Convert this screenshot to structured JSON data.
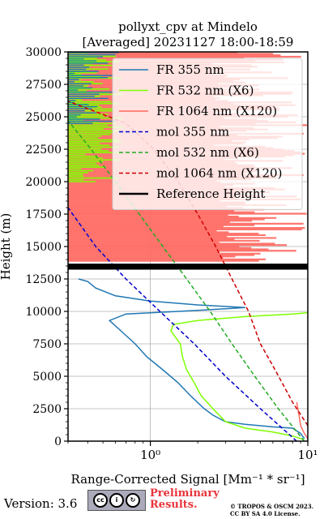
{
  "chart_data": {
    "type": "line",
    "title_line1": "pollyxt_cpv at Mindelo",
    "title_line2": "[Averaged] 20231127 18:00-18:59",
    "xlabel": "Range-Corrected Signal [Mm⁻¹ * sr⁻¹]",
    "ylabel": "Height (m)",
    "xscale": "log",
    "xlim": [
      0.3,
      10
    ],
    "ylim": [
      0,
      30000
    ],
    "xticks": [
      {
        "value": 1,
        "label": "10⁰"
      },
      {
        "value": 10,
        "label": "10¹"
      }
    ],
    "yticks": [
      0,
      2500,
      5000,
      7500,
      10000,
      12500,
      15000,
      17500,
      20000,
      22500,
      25000,
      27500,
      30000
    ],
    "grid": true,
    "legend_position": "top-right",
    "series": [
      {
        "name": "FR 355 nm",
        "color": "#1f77b4",
        "style": "solid",
        "points": [
          [
            9.5,
            200
          ],
          [
            9.0,
            600
          ],
          [
            8.0,
            1000
          ],
          [
            6.0,
            1100
          ],
          [
            4.0,
            1300
          ],
          [
            3.0,
            1500
          ],
          [
            2.5,
            2000
          ],
          [
            2.2,
            2500
          ],
          [
            1.8,
            3500
          ],
          [
            1.5,
            4500
          ],
          [
            1.2,
            5500
          ],
          [
            0.95,
            6500
          ],
          [
            0.8,
            7500
          ],
          [
            0.65,
            8500
          ],
          [
            0.55,
            9300
          ],
          [
            0.7,
            9800
          ],
          [
            1.5,
            10000
          ],
          [
            3.0,
            10200
          ],
          [
            4.0,
            10300
          ],
          [
            2.0,
            10500
          ],
          [
            1.0,
            10800
          ],
          [
            0.6,
            11200
          ],
          [
            0.45,
            11800
          ],
          [
            0.4,
            12300
          ],
          [
            0.35,
            12500
          ]
        ]
      },
      {
        "name": "FR 532 nm (X6)",
        "color": "#7fff00",
        "style": "solid",
        "points": [
          [
            9.5,
            100
          ],
          [
            8.0,
            400
          ],
          [
            6.0,
            700
          ],
          [
            4.0,
            1000
          ],
          [
            3.0,
            1500
          ],
          [
            2.5,
            2500
          ],
          [
            2.1,
            3500
          ],
          [
            1.9,
            4500
          ],
          [
            1.7,
            5500
          ],
          [
            1.6,
            6500
          ],
          [
            1.55,
            7500
          ],
          [
            1.35,
            8500
          ],
          [
            1.4,
            9000
          ],
          [
            2.0,
            9300
          ],
          [
            4.0,
            9600
          ],
          [
            8.0,
            9800
          ],
          [
            10.0,
            9900
          ]
        ]
      },
      {
        "name": "FR 1064 nm (X120)",
        "color": "#ff6961",
        "style": "solid",
        "points": [
          [
            10.0,
            200
          ],
          [
            9.5,
            600
          ],
          [
            9.0,
            1200
          ],
          [
            8.8,
            2000
          ],
          [
            8.5,
            3000
          ]
        ]
      },
      {
        "name": "mol 355 nm",
        "color": "#0000cd",
        "style": "dashed",
        "points": [
          [
            8.5,
            0
          ],
          [
            5.0,
            2500
          ],
          [
            3.0,
            5000
          ],
          [
            1.9,
            7500
          ],
          [
            1.15,
            10000
          ],
          [
            0.7,
            12500
          ],
          [
            0.45,
            15000
          ],
          [
            0.3,
            18000
          ]
        ]
      },
      {
        "name": "mol 532 nm (X6)",
        "color": "#22aa22",
        "style": "dashed",
        "points": [
          [
            9.5,
            0
          ],
          [
            6.5,
            2500
          ],
          [
            4.6,
            5000
          ],
          [
            3.3,
            7500
          ],
          [
            2.4,
            10000
          ],
          [
            1.7,
            12500
          ],
          [
            1.2,
            15000
          ],
          [
            0.85,
            17500
          ],
          [
            0.6,
            20000
          ],
          [
            0.42,
            22500
          ],
          [
            0.3,
            24700
          ]
        ]
      },
      {
        "name": "mol 1064 nm (X120)",
        "color": "#cc0000",
        "style": "dashed",
        "points": [
          [
            10.0,
            1200
          ],
          [
            8.0,
            3000
          ],
          [
            6.2,
            5500
          ],
          [
            5.0,
            7500
          ],
          [
            4.2,
            10000
          ],
          [
            3.3,
            12500
          ],
          [
            2.6,
            15000
          ],
          [
            2.0,
            17500
          ],
          [
            1.5,
            20000
          ],
          [
            1.05,
            22500
          ],
          [
            0.7,
            24500
          ],
          [
            0.3,
            26200
          ]
        ]
      },
      {
        "name": "Reference Height",
        "color": "#000000",
        "style": "solid",
        "points": [
          [
            0.3,
            13300
          ],
          [
            10.0,
            13300
          ],
          [
            10.0,
            13600
          ],
          [
            0.3,
            13600
          ]
        ]
      }
    ]
  },
  "footer": {
    "version": "Version: 3.6",
    "prelim_line1": "Preliminary",
    "prelim_line2": "Results.",
    "copyright_line1": "© TROPOS & OSCM 2023.",
    "copyright_line2": "CC BY SA 4.0 License."
  }
}
